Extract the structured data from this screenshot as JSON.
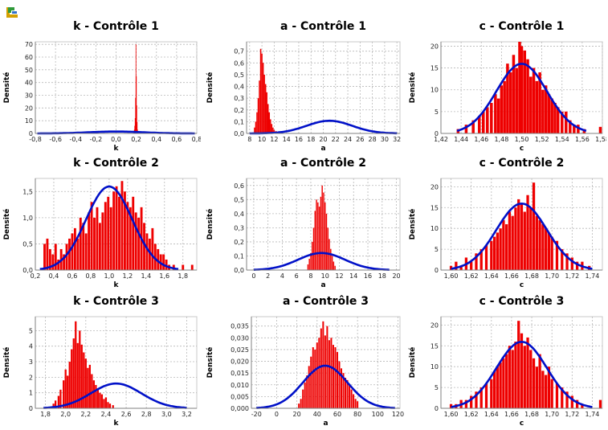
{
  "app": {
    "icon": "app-logo-icon"
  },
  "colors": {
    "histogram": "#ee0000",
    "curve": "#0010c8",
    "grid": "#b8b8b8"
  },
  "chart_data": [
    {
      "type": "bar",
      "title": "k - Contrôle 1",
      "xlabel": "k",
      "ylabel": "Densité",
      "xlim": [
        -0.8,
        0.8
      ],
      "ylim": [
        0,
        72
      ],
      "xticks": [
        -0.8,
        -0.6,
        -0.4,
        -0.2,
        0.0,
        0.2,
        0.4,
        0.6,
        0.8
      ],
      "xticklabels": [
        "-0,8",
        "-0,6",
        "-0,4",
        "-0,2",
        "0,0",
        "0,2",
        "0,4",
        "0,6",
        "0,8"
      ],
      "yticks": [
        0,
        10,
        20,
        30,
        40,
        50,
        60,
        70
      ],
      "yticklabels": [
        "0",
        "10",
        "20",
        "30",
        "40",
        "50",
        "60",
        "70"
      ],
      "hist": {
        "x": [
          0.176,
          0.18,
          0.184,
          0.188,
          0.192,
          0.196,
          0.2,
          0.204,
          0.208,
          0.212,
          0.216
        ],
        "values": [
          1,
          3,
          6,
          12,
          28,
          70,
          45,
          22,
          9,
          3,
          1
        ],
        "width": 0.004
      },
      "curve": {
        "mean": 0.0,
        "sd": 0.27,
        "xmin": -0.78,
        "xmax": 0.78
      }
    },
    {
      "type": "bar",
      "title": "a - Contrôle 1",
      "xlabel": "a",
      "ylabel": "Densité",
      "xlim": [
        7.5,
        32.5
      ],
      "ylim": [
        0,
        0.78
      ],
      "xticks": [
        8,
        10,
        12,
        14,
        16,
        18,
        20,
        22,
        24,
        26,
        28,
        30,
        32
      ],
      "xticklabels": [
        "8",
        "10",
        "12",
        "14",
        "16",
        "18",
        "20",
        "22",
        "24",
        "26",
        "28",
        "30",
        "32"
      ],
      "yticks": [
        0,
        0.1,
        0.2,
        0.3,
        0.4,
        0.5,
        0.6,
        0.7
      ],
      "yticklabels": [
        "0,0",
        "0,1",
        "0,2",
        "0,3",
        "0,4",
        "0,5",
        "0,6",
        "0,7"
      ],
      "hist": {
        "x": [
          8.8,
          9.0,
          9.2,
          9.4,
          9.6,
          9.8,
          10.0,
          10.2,
          10.4,
          10.6,
          10.8,
          11.0,
          11.2,
          11.4,
          11.6,
          11.8,
          12.0,
          12.3
        ],
        "values": [
          0.05,
          0.1,
          0.18,
          0.3,
          0.45,
          0.72,
          0.68,
          0.6,
          0.5,
          0.42,
          0.35,
          0.25,
          0.18,
          0.12,
          0.08,
          0.05,
          0.03,
          0.02
        ],
        "width": 0.2
      },
      "curve": {
        "mean": 21,
        "sd": 3.7,
        "xmin": 8,
        "xmax": 32
      }
    },
    {
      "type": "bar",
      "title": "c - Contrôle 1",
      "xlabel": "c",
      "ylabel": "Densité",
      "xlim": [
        1.42,
        1.58
      ],
      "ylim": [
        0,
        21
      ],
      "xticks": [
        1.42,
        1.44,
        1.46,
        1.48,
        1.5,
        1.52,
        1.54,
        1.56,
        1.58
      ],
      "xticklabels": [
        "1,42",
        "1,44",
        "1,46",
        "1,48",
        "1,50",
        "1,52",
        "1,54",
        "1,56",
        "1,58"
      ],
      "yticks": [
        0,
        5,
        10,
        15,
        20
      ],
      "yticklabels": [
        "0",
        "5",
        "10",
        "15",
        "20"
      ],
      "hist": {
        "x": [
          1.437,
          1.445,
          1.452,
          1.458,
          1.462,
          1.466,
          1.47,
          1.474,
          1.477,
          1.48,
          1.483,
          1.486,
          1.489,
          1.492,
          1.495,
          1.498,
          1.5,
          1.503,
          1.506,
          1.509,
          1.512,
          1.515,
          1.518,
          1.521,
          1.524,
          1.527,
          1.53,
          1.533,
          1.536,
          1.54,
          1.544,
          1.548,
          1.552,
          1.556,
          1.562,
          1.578
        ],
        "values": [
          1,
          2,
          3,
          4,
          5,
          6,
          7,
          9,
          8,
          11,
          12,
          16,
          14,
          18,
          15,
          21,
          20,
          19,
          17,
          13,
          15,
          12,
          14,
          10,
          11,
          9,
          8,
          7,
          6,
          5,
          5,
          3,
          2,
          2,
          1,
          1.5
        ],
        "width": 0.0028
      },
      "curve": {
        "mean": 1.5,
        "sd": 0.025,
        "xmin": 1.436,
        "xmax": 1.564
      }
    },
    {
      "type": "bar",
      "title": "k - Contrôle 2",
      "xlabel": "k",
      "ylabel": "Densité",
      "xlim": [
        0.2,
        1.95
      ],
      "ylim": [
        0,
        1.75
      ],
      "xticks": [
        0.2,
        0.4,
        0.6,
        0.8,
        1.0,
        1.2,
        1.4,
        1.6,
        1.8
      ],
      "xticklabels": [
        "0,2",
        "0,4",
        "0,6",
        "0,8",
        "1,0",
        "1,2",
        "1,4",
        "1,6",
        "1,8"
      ],
      "yticks": [
        0,
        0.5,
        1.0,
        1.5
      ],
      "yticklabels": [
        "0,0",
        "0,5",
        "1,0",
        "1,5"
      ],
      "hist": {
        "x": [
          0.3,
          0.33,
          0.36,
          0.39,
          0.42,
          0.45,
          0.48,
          0.51,
          0.54,
          0.57,
          0.6,
          0.63,
          0.66,
          0.69,
          0.72,
          0.75,
          0.78,
          0.81,
          0.84,
          0.87,
          0.9,
          0.93,
          0.96,
          0.99,
          1.02,
          1.05,
          1.08,
          1.11,
          1.14,
          1.17,
          1.2,
          1.23,
          1.26,
          1.29,
          1.32,
          1.35,
          1.38,
          1.41,
          1.44,
          1.47,
          1.5,
          1.53,
          1.56,
          1.59,
          1.62,
          1.65,
          1.7,
          1.8,
          1.9
        ],
        "values": [
          0.5,
          0.6,
          0.4,
          0.3,
          0.5,
          0.2,
          0.4,
          0.3,
          0.5,
          0.6,
          0.7,
          0.8,
          0.6,
          1.0,
          0.9,
          0.7,
          1.1,
          1.3,
          1.0,
          1.2,
          0.9,
          1.1,
          1.3,
          1.4,
          1.2,
          1.5,
          1.6,
          1.4,
          1.7,
          1.5,
          1.3,
          1.2,
          1.4,
          1.1,
          1.0,
          1.2,
          0.9,
          0.7,
          0.6,
          0.8,
          0.5,
          0.4,
          0.3,
          0.3,
          0.2,
          0.1,
          0.1,
          0.1,
          0.1
        ],
        "width": 0.025
      },
      "curve": {
        "mean": 1.0,
        "sd": 0.25,
        "xmin": 0.25,
        "xmax": 1.75
      }
    },
    {
      "type": "bar",
      "title": "a - Contrôle 2",
      "xlabel": "a",
      "ylabel": "Densité",
      "xlim": [
        -1,
        20.5
      ],
      "ylim": [
        0,
        0.65
      ],
      "xticks": [
        0,
        2,
        4,
        6,
        8,
        10,
        12,
        14,
        16,
        18,
        20
      ],
      "xticklabels": [
        "0",
        "2",
        "4",
        "6",
        "8",
        "10",
        "12",
        "14",
        "16",
        "18",
        "20"
      ],
      "yticks": [
        0,
        0.1,
        0.2,
        0.3,
        0.4,
        0.5,
        0.6
      ],
      "yticklabels": [
        "0,0",
        "0,1",
        "0,2",
        "0,3",
        "0,4",
        "0,5",
        "0,6"
      ],
      "hist": {
        "x": [
          7.6,
          7.8,
          8.0,
          8.2,
          8.4,
          8.6,
          8.8,
          9.0,
          9.2,
          9.4,
          9.6,
          9.8,
          10.0,
          10.2,
          10.4,
          10.6,
          10.8,
          11.0,
          11.2,
          11.4
        ],
        "values": [
          0.04,
          0.08,
          0.12,
          0.2,
          0.3,
          0.42,
          0.5,
          0.48,
          0.45,
          0.52,
          0.6,
          0.55,
          0.48,
          0.4,
          0.3,
          0.22,
          0.15,
          0.1,
          0.06,
          0.03
        ],
        "width": 0.16
      },
      "curve": {
        "mean": 9.5,
        "sd": 3.3,
        "xmin": 0,
        "xmax": 19
      }
    },
    {
      "type": "bar",
      "title": "c - Contrôle 2",
      "xlabel": "c",
      "ylabel": "Densité",
      "xlim": [
        1.59,
        1.75
      ],
      "ylim": [
        0,
        22
      ],
      "xticks": [
        1.6,
        1.62,
        1.64,
        1.66,
        1.68,
        1.7,
        1.72,
        1.74
      ],
      "xticklabels": [
        "1,60",
        "1,62",
        "1,64",
        "1,66",
        "1,68",
        "1,70",
        "1,72",
        "1,74"
      ],
      "yticks": [
        0,
        5,
        10,
        15,
        20
      ],
      "yticklabels": [
        "0",
        "5",
        "10",
        "15",
        "20"
      ],
      "hist": {
        "x": [
          1.6,
          1.605,
          1.61,
          1.615,
          1.62,
          1.625,
          1.63,
          1.635,
          1.64,
          1.643,
          1.646,
          1.649,
          1.652,
          1.655,
          1.658,
          1.661,
          1.664,
          1.667,
          1.67,
          1.673,
          1.676,
          1.679,
          1.682,
          1.685,
          1.688,
          1.691,
          1.694,
          1.697,
          1.7,
          1.705,
          1.71,
          1.715,
          1.72,
          1.725,
          1.73,
          1.737
        ],
        "values": [
          1,
          2,
          1,
          3,
          2,
          4,
          5,
          6,
          7,
          8,
          9,
          10,
          12,
          11,
          14,
          13,
          15,
          17,
          16,
          14,
          18,
          15,
          21,
          13,
          12,
          11,
          10,
          9,
          8,
          7,
          5,
          4,
          3,
          2,
          2,
          1
        ],
        "width": 0.0026
      },
      "curve": {
        "mean": 1.67,
        "sd": 0.025,
        "xmin": 1.6,
        "xmax": 1.74
      }
    },
    {
      "type": "bar",
      "title": "k - Contrôle 3",
      "xlabel": "k",
      "ylabel": "Densité",
      "xlim": [
        1.7,
        3.3
      ],
      "ylim": [
        0,
        5.9
      ],
      "xticks": [
        1.8,
        2.0,
        2.2,
        2.4,
        2.6,
        2.8,
        3.0,
        3.2
      ],
      "xticklabels": [
        "1,8",
        "2,0",
        "2,2",
        "2,4",
        "2,6",
        "2,8",
        "3,0",
        "3,2"
      ],
      "yticks": [
        0,
        1,
        2,
        3,
        4,
        5
      ],
      "yticklabels": [
        "0",
        "1",
        "2",
        "3",
        "4",
        "5"
      ],
      "hist": {
        "x": [
          1.85,
          1.88,
          1.9,
          1.93,
          1.95,
          1.98,
          2.0,
          2.02,
          2.04,
          2.06,
          2.08,
          2.1,
          2.12,
          2.14,
          2.16,
          2.18,
          2.2,
          2.22,
          2.24,
          2.26,
          2.28,
          2.3,
          2.32,
          2.34,
          2.36,
          2.38,
          2.4,
          2.42,
          2.44,
          2.47
        ],
        "values": [
          0.1,
          0.3,
          0.5,
          0.8,
          1.2,
          1.8,
          2.5,
          2.1,
          3.0,
          3.8,
          4.5,
          5.6,
          4.2,
          5.0,
          4.1,
          3.6,
          3.2,
          2.6,
          2.8,
          2.2,
          1.8,
          1.5,
          1.2,
          1.0,
          0.9,
          0.6,
          0.7,
          0.4,
          0.3,
          0.2
        ],
        "width": 0.018
      },
      "curve": {
        "mean": 2.5,
        "sd": 0.25,
        "xmin": 1.78,
        "xmax": 3.2
      }
    },
    {
      "type": "bar",
      "title": "a - Contrôle 3",
      "xlabel": "a",
      "ylabel": "Densité",
      "xlim": [
        -25,
        122
      ],
      "ylim": [
        0,
        0.039
      ],
      "xticks": [
        -20,
        0,
        20,
        40,
        60,
        80,
        100,
        120
      ],
      "xticklabels": [
        "-20",
        "0",
        "20",
        "40",
        "60",
        "80",
        "100",
        "120"
      ],
      "yticks": [
        0,
        0.005,
        0.01,
        0.015,
        0.02,
        0.025,
        0.03,
        0.035
      ],
      "yticklabels": [
        "0,000",
        "0,005",
        "0,010",
        "0,015",
        "0,020",
        "0,025",
        "0,030",
        "0,035"
      ],
      "hist": {
        "x": [
          22,
          24,
          26,
          28,
          30,
          32,
          34,
          36,
          38,
          40,
          42,
          44,
          46,
          48,
          50,
          52,
          54,
          56,
          58,
          60,
          62,
          64,
          66,
          68,
          70,
          72,
          74,
          76,
          78,
          80
        ],
        "values": [
          0.002,
          0.004,
          0.008,
          0.011,
          0.014,
          0.018,
          0.022,
          0.026,
          0.025,
          0.028,
          0.03,
          0.034,
          0.037,
          0.031,
          0.035,
          0.029,
          0.03,
          0.027,
          0.026,
          0.024,
          0.02,
          0.017,
          0.015,
          0.013,
          0.012,
          0.01,
          0.008,
          0.006,
          0.004,
          0.003
        ],
        "width": 1.6
      },
      "curve": {
        "mean": 48,
        "sd": 22,
        "xmin": -20,
        "xmax": 117
      }
    },
    {
      "type": "bar",
      "title": "c - Contrôle 3",
      "xlabel": "c",
      "ylabel": "Densité",
      "xlim": [
        1.59,
        1.75
      ],
      "ylim": [
        0,
        22
      ],
      "xticks": [
        1.6,
        1.62,
        1.64,
        1.66,
        1.68,
        1.7,
        1.72,
        1.74
      ],
      "xticklabels": [
        "1,60",
        "1,62",
        "1,64",
        "1,66",
        "1,68",
        "1,70",
        "1,72",
        "1,74"
      ],
      "yticks": [
        0,
        5,
        10,
        15,
        20
      ],
      "yticklabels": [
        "0",
        "5",
        "10",
        "15",
        "20"
      ],
      "hist": {
        "x": [
          1.6,
          1.605,
          1.61,
          1.615,
          1.62,
          1.625,
          1.63,
          1.635,
          1.64,
          1.643,
          1.646,
          1.649,
          1.652,
          1.655,
          1.658,
          1.661,
          1.664,
          1.667,
          1.67,
          1.673,
          1.676,
          1.679,
          1.682,
          1.685,
          1.688,
          1.691,
          1.694,
          1.697,
          1.7,
          1.705,
          1.71,
          1.715,
          1.72,
          1.725,
          1.73,
          1.748
        ],
        "values": [
          1,
          1,
          2,
          2,
          3,
          4,
          5,
          6,
          7,
          9,
          10,
          11,
          12,
          13,
          15,
          14,
          16,
          21,
          18,
          15,
          17,
          14,
          12,
          10,
          13,
          9,
          8,
          10,
          7,
          6,
          5,
          4,
          3,
          2,
          1,
          2
        ],
        "width": 0.0026
      },
      "curve": {
        "mean": 1.67,
        "sd": 0.025,
        "xmin": 1.6,
        "xmax": 1.74
      }
    }
  ]
}
